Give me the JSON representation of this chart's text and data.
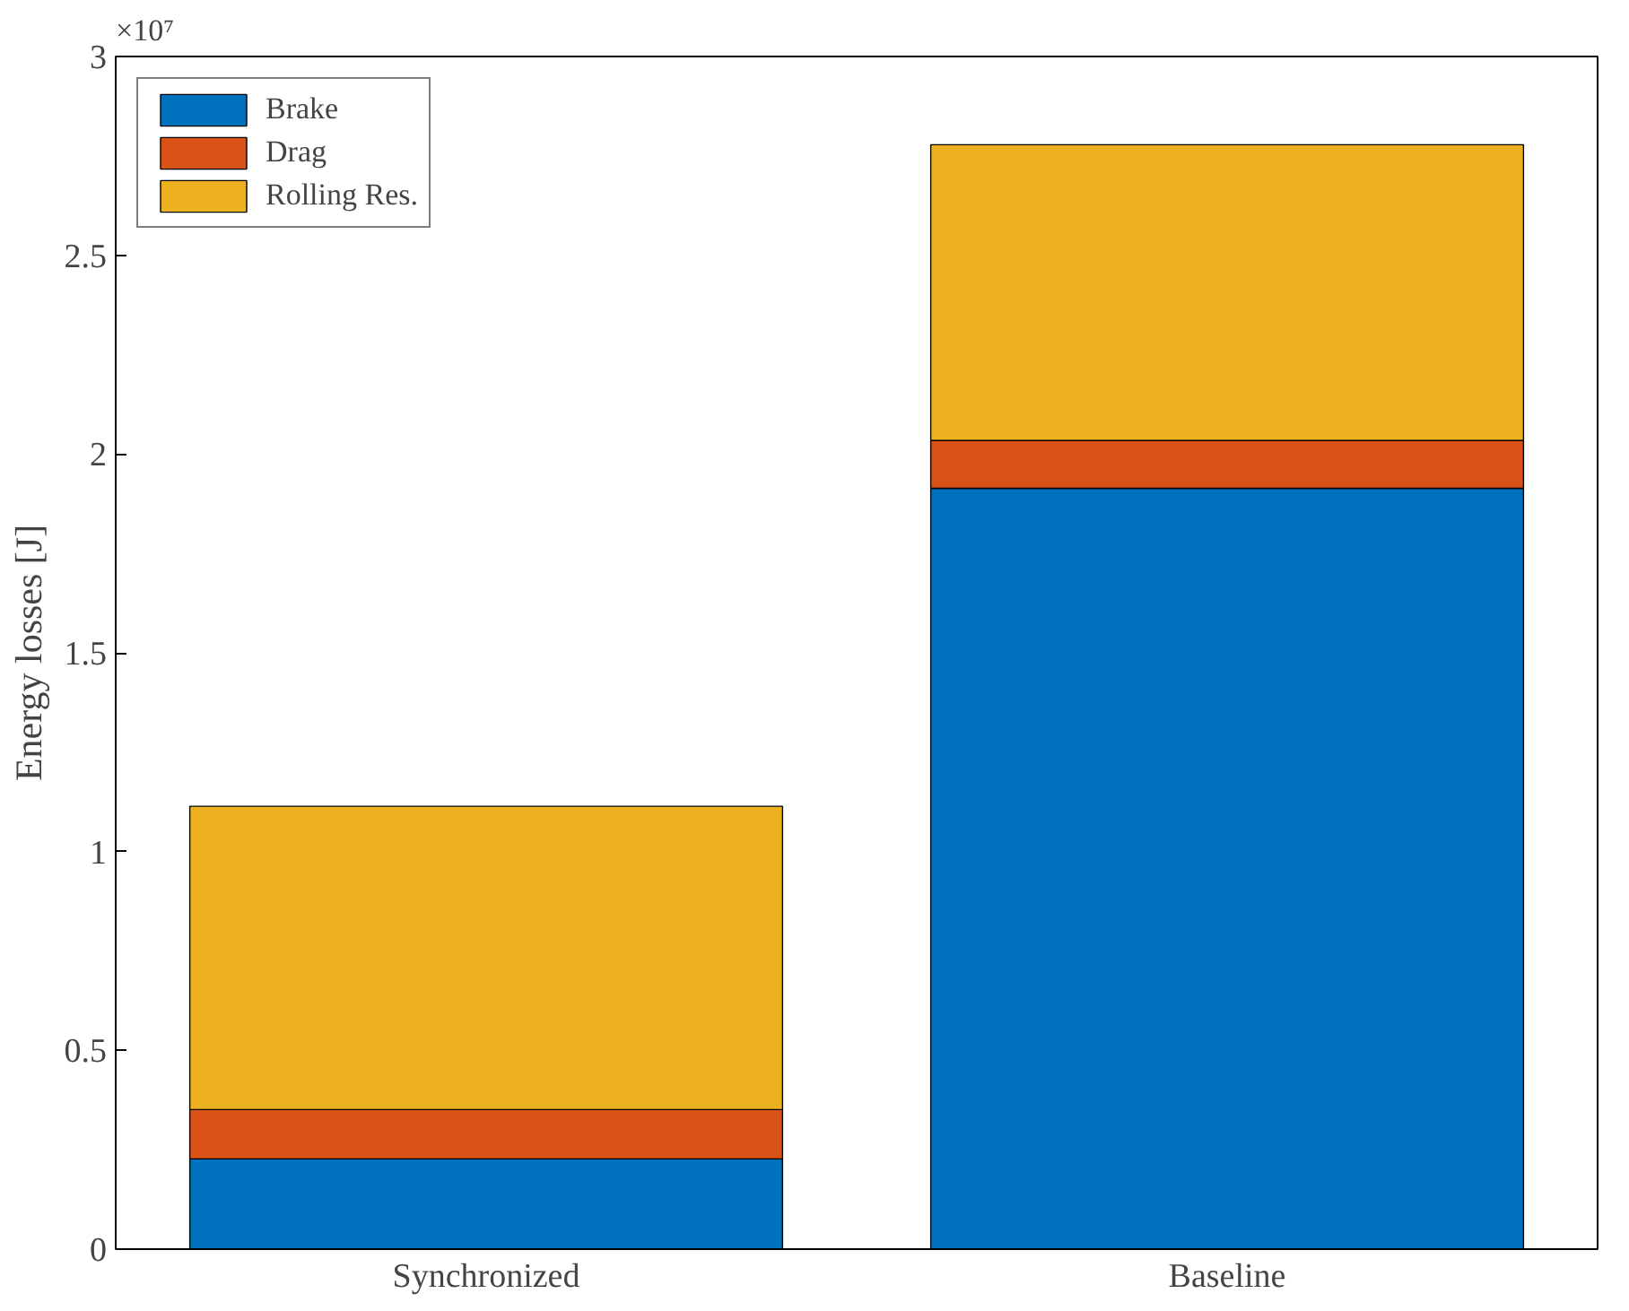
{
  "chart_data": {
    "type": "bar",
    "stacked": true,
    "ylabel": "Energy losses [J]",
    "categories": [
      "Synchronized",
      "Baseline"
    ],
    "series": [
      {
        "name": "Brake",
        "color": "#0072bd",
        "values": [
          0.227,
          1.914
        ]
      },
      {
        "name": "Drag",
        "color": "#d95319",
        "values": [
          0.124,
          0.12
        ]
      },
      {
        "name": "Rolling Res.",
        "color": "#edb120",
        "values": [
          0.763,
          0.744
        ]
      }
    ],
    "ylim": [
      0,
      3
    ],
    "yticks": [
      0,
      0.5,
      1,
      1.5,
      2,
      2.5,
      3
    ],
    "annotations": [
      "×10⁷"
    ],
    "grid": false,
    "legend": "top left"
  }
}
